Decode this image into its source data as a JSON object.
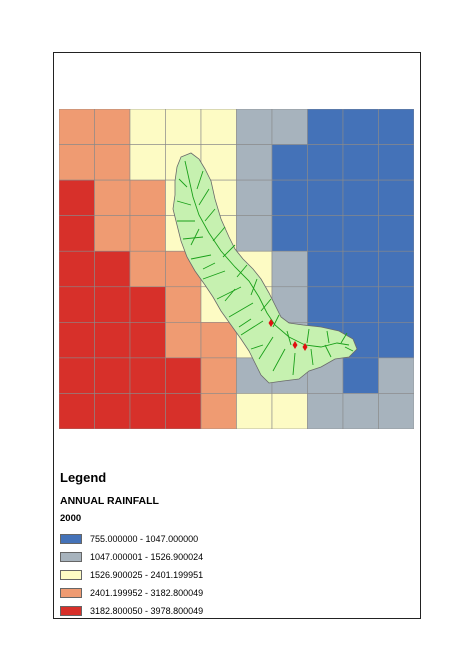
{
  "legend": {
    "title": "Legend",
    "layer": "ANNUAL RAINFALL",
    "field": "2000",
    "classes": [
      {
        "label": "755.000000 - 1047.000000",
        "color": "#4472b8"
      },
      {
        "label": "1047.000001 - 1526.900024",
        "color": "#a7b3bd"
      },
      {
        "label": "1526.900025 - 2401.199951",
        "color": "#fdfbc4"
      },
      {
        "label": "2401.199952 - 3182.800049",
        "color": "#ef9b72"
      },
      {
        "label": "3182.800050 - 3978.800049",
        "color": "#d7302a"
      }
    ]
  },
  "grid": {
    "columns": 10,
    "rows": 9,
    "class_matrix": [
      [
        3,
        3,
        2,
        2,
        2,
        1,
        1,
        0,
        0,
        0
      ],
      [
        3,
        3,
        2,
        2,
        2,
        1,
        0,
        0,
        0,
        0
      ],
      [
        4,
        3,
        3,
        2,
        2,
        1,
        0,
        0,
        0,
        0
      ],
      [
        4,
        3,
        3,
        2,
        2,
        1,
        0,
        0,
        0,
        0
      ],
      [
        4,
        4,
        3,
        3,
        2,
        2,
        1,
        0,
        0,
        0
      ],
      [
        4,
        4,
        4,
        3,
        2,
        2,
        1,
        0,
        0,
        0
      ],
      [
        4,
        4,
        4,
        3,
        3,
        2,
        1,
        0,
        0,
        0
      ],
      [
        4,
        4,
        4,
        4,
        3,
        1,
        1,
        1,
        0,
        1
      ],
      [
        4,
        4,
        4,
        4,
        3,
        2,
        2,
        1,
        1,
        1
      ]
    ]
  },
  "watershed": {
    "fill_color": "#c6f1b0",
    "stream_color": "#1aa01a",
    "outlet_color": "#e01010"
  }
}
